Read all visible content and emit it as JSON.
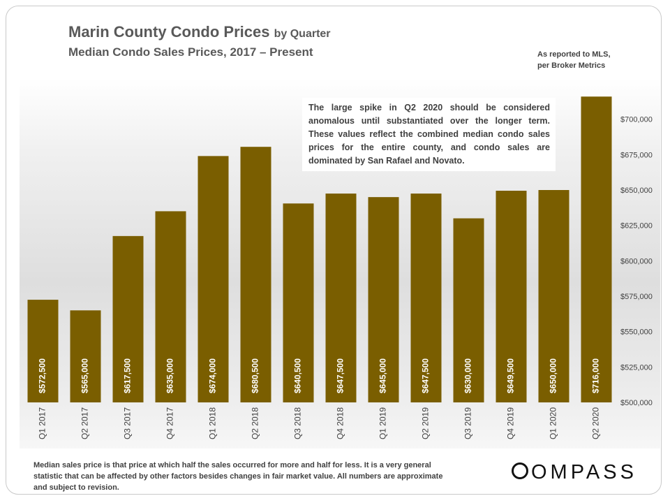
{
  "header": {
    "title_main": "Marin County Condo Prices",
    "title_suffix": "by Quarter",
    "subtitle": "Median Condo Sales Prices, 2017 – Present",
    "source_note": "As reported to MLS, per Broker Metrics"
  },
  "annotation": "The large spike in Q2 2020 should be considered anomalous until substantiated over the longer term. These values reflect the combined median condo sales prices for the entire county, and condo sales are dominated by San Rafael and Novato.",
  "footnote": "Median sales price is that price at which half the sales occurred for more and half for less. It is a very general statistic that can be affected by other factors besides changes in fair market value. All numbers are approximate and subject to revision.",
  "logo": {
    "text": "OMPASS",
    "icon": "compass-c-icon"
  },
  "colors": {
    "bar": "#7a5e00",
    "axis_text": "#404040",
    "bar_label": "#ffffff"
  },
  "chart_data": {
    "type": "bar",
    "categories": [
      "Q1 2017",
      "Q2 2017",
      "Q3 2017",
      "Q4 2017",
      "Q1 2018",
      "Q2 2018",
      "Q3 2018",
      "Q4 2018",
      "Q1 2019",
      "Q2 2019",
      "Q3 2019",
      "Q4 2019",
      "Q1 2020",
      "Q2 2020"
    ],
    "values": [
      572500,
      565000,
      617500,
      635000,
      674000,
      680500,
      640500,
      647500,
      645000,
      647500,
      630000,
      649500,
      650000,
      716000
    ],
    "data_labels": [
      "$572,500",
      "$565,000",
      "$617,500",
      "$635,000",
      "$674,000",
      "$680,500",
      "$640,500",
      "$647,500",
      "$645,000",
      "$647,500",
      "$630,000",
      "$649,500",
      "$650,000",
      "$716,000"
    ],
    "ylim": [
      500000,
      725000
    ],
    "yticks": [
      500000,
      525000,
      550000,
      575000,
      600000,
      625000,
      650000,
      675000,
      700000
    ],
    "ytick_labels": [
      "$500,000",
      "$525,000",
      "$550,000",
      "$575,000",
      "$600,000",
      "$625,000",
      "$650,000",
      "$675,000",
      "$700,000"
    ],
    "y_axis_side": "right",
    "grid": false,
    "legend": "none",
    "xlabel": "",
    "ylabel": ""
  }
}
